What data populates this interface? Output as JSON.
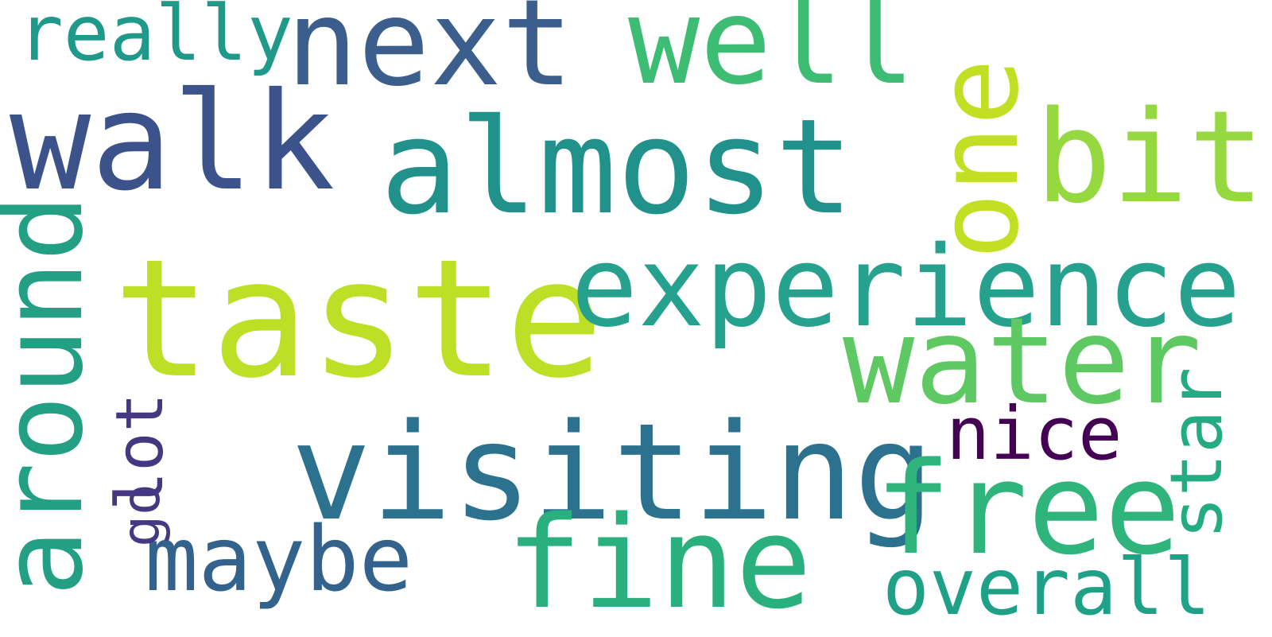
{
  "words": {
    "taste": {
      "text": "taste",
      "color": "#bddf26"
    },
    "experience": {
      "text": "experience",
      "color": "#25a18e"
    },
    "almost": {
      "text": "almost",
      "color": "#21918c"
    },
    "walk": {
      "text": "walk",
      "color": "#3b528b"
    },
    "next": {
      "text": "next",
      "color": "#3b5e8c"
    },
    "visiting": {
      "text": "visiting",
      "color": "#2c728e"
    },
    "around": {
      "text": "around",
      "color": "#23a083"
    },
    "water": {
      "text": "water",
      "color": "#5ec962"
    },
    "free": {
      "text": "free",
      "color": "#2fb47c"
    },
    "fine": {
      "text": "fine",
      "color": "#2ab07f"
    },
    "well": {
      "text": "well",
      "color": "#3dbc74"
    },
    "one": {
      "text": "one",
      "color": "#c2df23"
    },
    "bit": {
      "text": "bit",
      "color": "#95d840"
    },
    "maybe": {
      "text": "maybe",
      "color": "#33638d"
    },
    "really": {
      "text": "really",
      "color": "#1f9a8a"
    },
    "nice": {
      "text": "nice",
      "color": "#440154"
    },
    "star": {
      "text": "star",
      "color": "#25ab82"
    },
    "lot": {
      "text": "lot",
      "color": "#453781"
    },
    "go": {
      "text": "go",
      "color": "#443983"
    },
    "overall": {
      "text": "overall",
      "color": "#1fa187"
    }
  }
}
